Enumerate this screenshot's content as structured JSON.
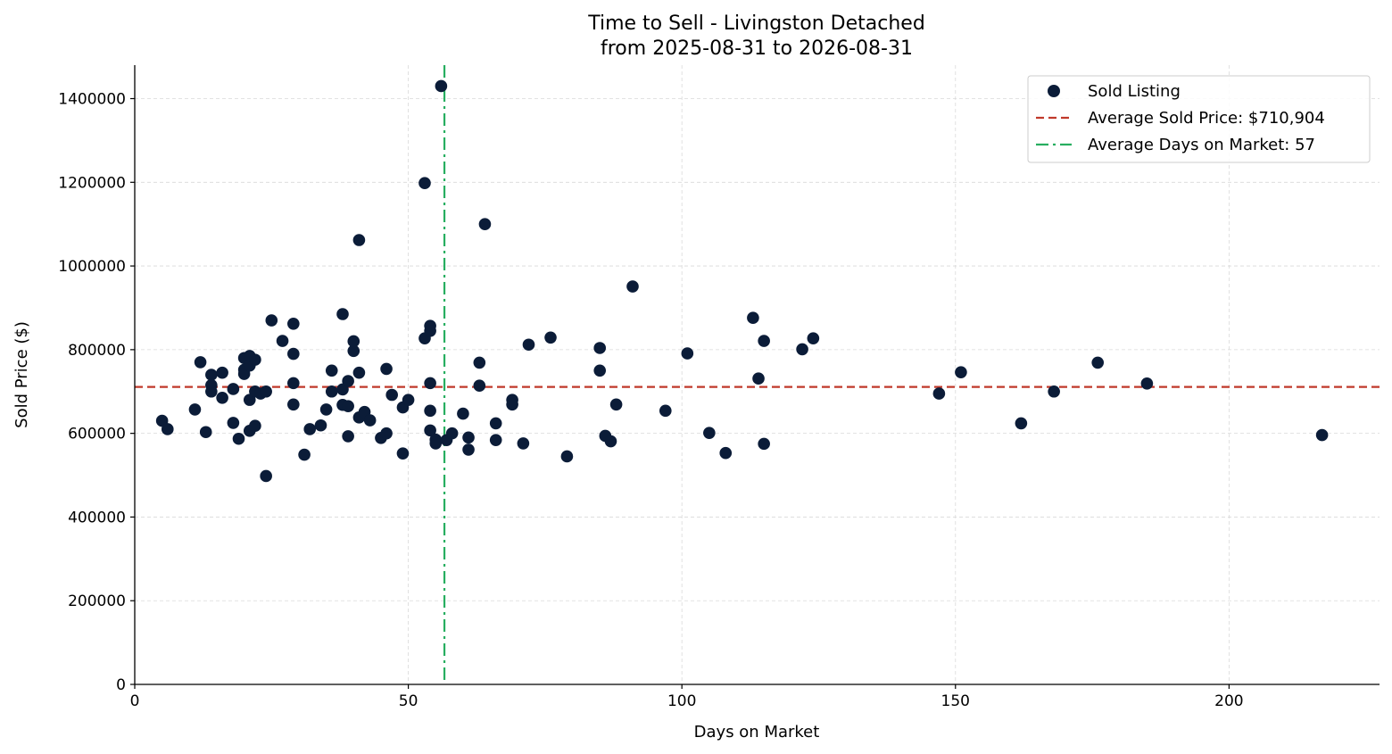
{
  "chart_data": {
    "type": "scatter",
    "title": [
      "Time to Sell - Livingston Detached",
      "from 2025-08-31 to 2026-08-31"
    ],
    "xlabel": "Days on Market",
    "ylabel": "Sold Price ($)",
    "xlim": [
      0,
      227.5
    ],
    "ylim": [
      0,
      1480000
    ],
    "xticks": [
      0,
      50,
      100,
      150,
      200
    ],
    "yticks": [
      0,
      200000,
      400000,
      600000,
      800000,
      1000000,
      1200000,
      1400000
    ],
    "grid": true,
    "legend_position": "top-right",
    "series": [
      {
        "name": "Sold Listing",
        "color": "#0b1c38",
        "points": [
          [
            5,
            630000
          ],
          [
            6,
            610000
          ],
          [
            11,
            657000
          ],
          [
            12,
            770000
          ],
          [
            13,
            603000
          ],
          [
            14,
            740000
          ],
          [
            14,
            715000
          ],
          [
            14,
            700000
          ],
          [
            16,
            745000
          ],
          [
            16,
            685000
          ],
          [
            18,
            706000
          ],
          [
            18,
            625000
          ],
          [
            19,
            587000
          ],
          [
            20,
            780000
          ],
          [
            20,
            752000
          ],
          [
            20,
            742000
          ],
          [
            21,
            785000
          ],
          [
            21,
            762000
          ],
          [
            21,
            680000
          ],
          [
            21,
            606000
          ],
          [
            22,
            776000
          ],
          [
            22,
            700000
          ],
          [
            22,
            618000
          ],
          [
            23,
            695000
          ],
          [
            24,
            700000
          ],
          [
            24,
            498000
          ],
          [
            25,
            870000
          ],
          [
            27,
            821000
          ],
          [
            29,
            862000
          ],
          [
            29,
            790000
          ],
          [
            29,
            720000
          ],
          [
            29,
            669000
          ],
          [
            31,
            549000
          ],
          [
            32,
            610000
          ],
          [
            34,
            619000
          ],
          [
            35,
            657000
          ],
          [
            36,
            750000
          ],
          [
            36,
            700000
          ],
          [
            38,
            885000
          ],
          [
            38,
            705000
          ],
          [
            38,
            668000
          ],
          [
            39,
            725000
          ],
          [
            39,
            665000
          ],
          [
            39,
            593000
          ],
          [
            40,
            820000
          ],
          [
            40,
            797000
          ],
          [
            41,
            1062000
          ],
          [
            41,
            745000
          ],
          [
            41,
            638000
          ],
          [
            42,
            651000
          ],
          [
            43,
            631000
          ],
          [
            45,
            589000
          ],
          [
            46,
            754000
          ],
          [
            46,
            600000
          ],
          [
            47,
            692000
          ],
          [
            49,
            662000
          ],
          [
            49,
            552000
          ],
          [
            50,
            680000
          ],
          [
            53,
            1198000
          ],
          [
            53,
            827000
          ],
          [
            54,
            857000
          ],
          [
            54,
            845000
          ],
          [
            54,
            720000
          ],
          [
            54,
            654000
          ],
          [
            54,
            607000
          ],
          [
            55,
            585000
          ],
          [
            55,
            576000
          ],
          [
            56,
            1430000
          ],
          [
            57,
            584000
          ],
          [
            58,
            600000
          ],
          [
            60,
            647000
          ],
          [
            61,
            590000
          ],
          [
            61,
            561000
          ],
          [
            63,
            769000
          ],
          [
            63,
            714000
          ],
          [
            64,
            1100000
          ],
          [
            66,
            624000
          ],
          [
            66,
            584000
          ],
          [
            69,
            680000
          ],
          [
            69,
            669000
          ],
          [
            71,
            576000
          ],
          [
            72,
            812000
          ],
          [
            76,
            829000
          ],
          [
            79,
            545000
          ],
          [
            85,
            804000
          ],
          [
            85,
            750000
          ],
          [
            86,
            594000
          ],
          [
            87,
            581000
          ],
          [
            88,
            669000
          ],
          [
            91,
            951000
          ],
          [
            97,
            654000
          ],
          [
            101,
            791000
          ],
          [
            105,
            601000
          ],
          [
            108,
            553000
          ],
          [
            113,
            876000
          ],
          [
            114,
            731000
          ],
          [
            115,
            821000
          ],
          [
            115,
            575000
          ],
          [
            122,
            801000
          ],
          [
            124,
            827000
          ],
          [
            147,
            695000
          ],
          [
            151,
            746000
          ],
          [
            162,
            624000
          ],
          [
            168,
            700000
          ],
          [
            176,
            769000
          ],
          [
            185,
            719000
          ],
          [
            217,
            596000
          ]
        ]
      }
    ],
    "reference_lines": [
      {
        "name": "Average Sold Price: $710,904",
        "orientation": "horizontal",
        "value": 710904,
        "color": "#c0392b",
        "style": "dashed"
      },
      {
        "name": "Average Days on Market: 57",
        "orientation": "vertical",
        "value": 56.6,
        "color": "#27ae60",
        "style": "dash-dot"
      }
    ]
  }
}
